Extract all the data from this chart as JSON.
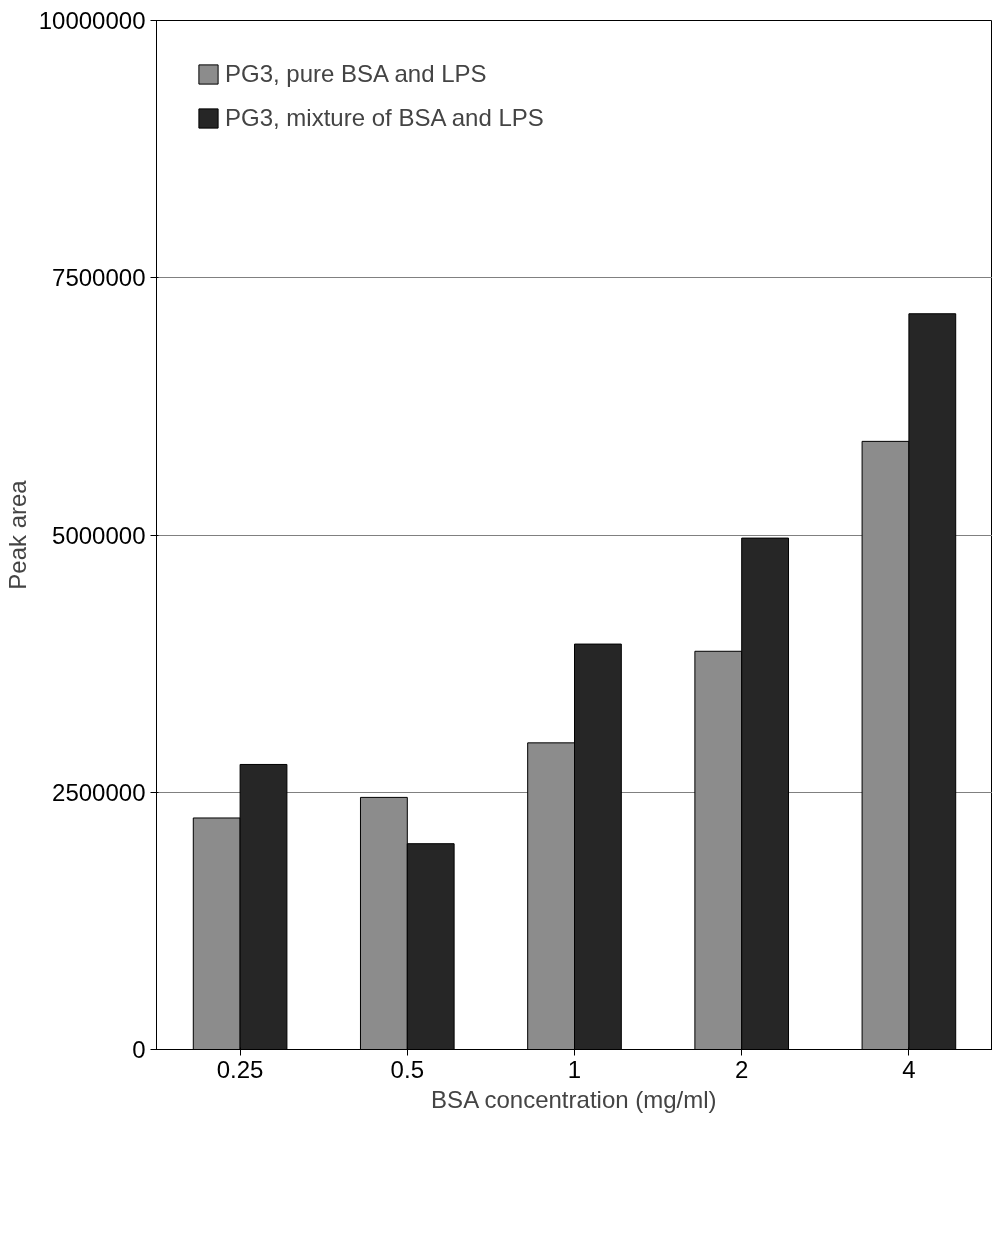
{
  "chart_data": {
    "type": "bar",
    "xlabel": "BSA concentration (mg/ml)",
    "ylabel": "Peak area",
    "categories": [
      "0.25",
      "0.5",
      "1",
      "2",
      "4"
    ],
    "series": [
      {
        "name": "PG3, pure BSA and LPS",
        "color": "#8c8c8c",
        "values": [
          2250000,
          2450000,
          2980000,
          3870000,
          5910000
        ]
      },
      {
        "name": "PG3, mixture of BSA and LPS",
        "color": "#262626",
        "values": [
          2770000,
          2000000,
          3940000,
          4970000,
          7150000
        ]
      }
    ],
    "ylim": [
      0,
      10000000
    ],
    "yticks": [
      0,
      2500000,
      5000000,
      7500000,
      10000000
    ],
    "grid": "y",
    "legend": "top left"
  }
}
